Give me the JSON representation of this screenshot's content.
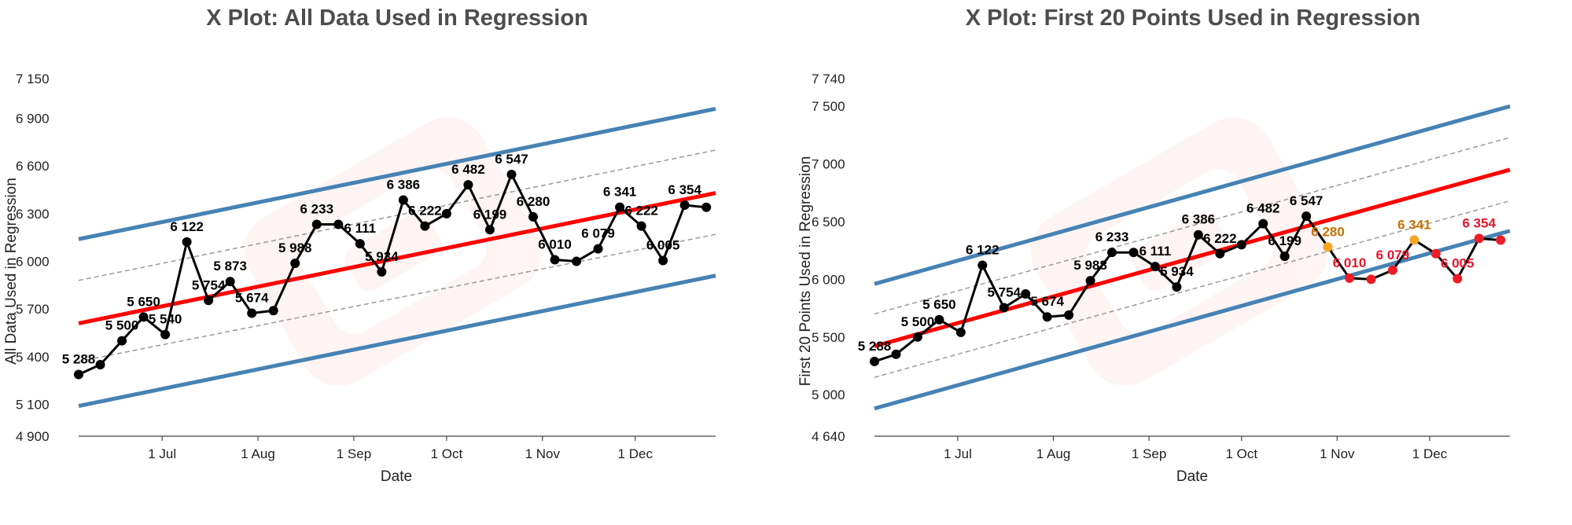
{
  "colors": {
    "line": "#000000",
    "regression": "#ff0000",
    "band_outer": "#4682b4",
    "band_inner": "#999999",
    "point_in": "#000000",
    "point_out": "#ee1c25",
    "point_warn": "#f5a623",
    "label_out": "#e0162b",
    "label_warn": "#c87000"
  },
  "chart_data": [
    {
      "type": "line",
      "title": "X Plot: All Data Used in Regression",
      "xlabel": "Date",
      "ylabel": "All Data Used in Regression",
      "ylim": [
        4900,
        7150
      ],
      "yticks": [
        4900,
        5100,
        5400,
        5700,
        6000,
        6300,
        6600,
        6900,
        7150
      ],
      "ytick_labels": [
        "4 900",
        "5 100",
        "5 400",
        "5 700",
        "6 000",
        "6 300",
        "6 600",
        "6 900",
        "7 150"
      ],
      "xlim": [
        "2023-06-04",
        "2023-12-27"
      ],
      "xticks": [
        "2023-07-01",
        "2023-08-01",
        "2023-09-01",
        "2023-10-01",
        "2023-11-01",
        "2023-12-01"
      ],
      "xtick_labels": [
        "1 Jul",
        "1 Aug",
        "1 Sep",
        "1 Oct",
        "1 Nov",
        "1 Dec"
      ],
      "series": [
        {
          "x": [
            "2023-06-04",
            "2023-06-11",
            "2023-06-18",
            "2023-06-25",
            "2023-07-02",
            "2023-07-09",
            "2023-07-16",
            "2023-07-23",
            "2023-07-30",
            "2023-08-06",
            "2023-08-13",
            "2023-08-20",
            "2023-08-27",
            "2023-09-03",
            "2023-09-10",
            "2023-09-17",
            "2023-09-24",
            "2023-10-01",
            "2023-10-08",
            "2023-10-15",
            "2023-10-22",
            "2023-10-29",
            "2023-11-05",
            "2023-11-12",
            "2023-11-19",
            "2023-11-26",
            "2023-12-03",
            "2023-12-10",
            "2023-12-17",
            "2023-12-24"
          ],
          "y": [
            5288,
            5350,
            5500,
            5650,
            5540,
            6122,
            5754,
            5873,
            5674,
            5690,
            5988,
            6233,
            6233,
            6111,
            5934,
            6386,
            6222,
            6300,
            6482,
            6199,
            6547,
            6280,
            6010,
            6000,
            6079,
            6341,
            6222,
            6005,
            6354,
            6340
          ],
          "status": [
            "in",
            "in",
            "in",
            "in",
            "in",
            "in",
            "in",
            "in",
            "in",
            "in",
            "in",
            "in",
            "in",
            "in",
            "in",
            "in",
            "in",
            "in",
            "in",
            "in",
            "in",
            "in",
            "in",
            "in",
            "in",
            "in",
            "in",
            "in",
            "in",
            "in"
          ],
          "labels": [
            "5 288",
            "",
            "5 500",
            "5 650",
            "5 540",
            "6 122",
            "5 754",
            "5 873",
            "5 674",
            "",
            "5 988",
            "6 233",
            "",
            "6 111",
            "5 934",
            "6 386",
            "6 222",
            "",
            "6 482",
            "6 199",
            "6 547",
            "6 280",
            "6 010",
            "",
            "6 079",
            "6 341",
            "6 222",
            "6 005",
            "6 354",
            ""
          ]
        }
      ],
      "regression": {
        "start": 5610,
        "end": 6430
      },
      "bands": {
        "outer": {
          "lower": [
            5090,
            5910
          ],
          "upper": [
            6140,
            6960
          ]
        },
        "inner": {
          "lower": [
            5370,
            6170
          ],
          "upper": [
            5880,
            6700
          ]
        }
      }
    },
    {
      "type": "line",
      "title": "X Plot: First 20 Points Used in Regression",
      "xlabel": "Date",
      "ylabel": "First 20 Points Used in Regression",
      "ylim": [
        4640,
        7740
      ],
      "yticks": [
        4640,
        5000,
        5500,
        6000,
        6500,
        7000,
        7500,
        7740
      ],
      "ytick_labels": [
        "4 640",
        "5 000",
        "5 500",
        "6 000",
        "6 500",
        "7 000",
        "7 500",
        "7 740"
      ],
      "xlim": [
        "2023-06-04",
        "2023-12-27"
      ],
      "xticks": [
        "2023-07-01",
        "2023-08-01",
        "2023-09-01",
        "2023-10-01",
        "2023-11-01",
        "2023-12-01"
      ],
      "xtick_labels": [
        "1 Jul",
        "1 Aug",
        "1 Sep",
        "1 Oct",
        "1 Nov",
        "1 Dec"
      ],
      "series": [
        {
          "x": [
            "2023-06-04",
            "2023-06-11",
            "2023-06-18",
            "2023-06-25",
            "2023-07-02",
            "2023-07-09",
            "2023-07-16",
            "2023-07-23",
            "2023-07-30",
            "2023-08-06",
            "2023-08-13",
            "2023-08-20",
            "2023-08-27",
            "2023-09-03",
            "2023-09-10",
            "2023-09-17",
            "2023-09-24",
            "2023-10-01",
            "2023-10-08",
            "2023-10-15",
            "2023-10-22",
            "2023-10-29",
            "2023-11-05",
            "2023-11-12",
            "2023-11-19",
            "2023-11-26",
            "2023-12-03",
            "2023-12-10",
            "2023-12-17",
            "2023-12-24"
          ],
          "y": [
            5288,
            5350,
            5500,
            5650,
            5540,
            6122,
            5754,
            5873,
            5674,
            5690,
            5988,
            6233,
            6233,
            6111,
            5934,
            6386,
            6222,
            6300,
            6482,
            6199,
            6547,
            6280,
            6010,
            6000,
            6079,
            6341,
            6222,
            6005,
            6354,
            6340
          ],
          "status": [
            "in",
            "in",
            "in",
            "in",
            "in",
            "in",
            "in",
            "in",
            "in",
            "in",
            "in",
            "in",
            "in",
            "in",
            "in",
            "in",
            "in",
            "in",
            "in",
            "in",
            "in",
            "warn",
            "out",
            "out",
            "out",
            "warn",
            "out",
            "out",
            "out",
            "out"
          ],
          "labels": [
            "5 288",
            "",
            "5 500",
            "5 650",
            "",
            "6 122",
            "5 754",
            "",
            "5 674",
            "",
            "5 988",
            "6 233",
            "",
            "6 111",
            "5 934",
            "6 386",
            "6 222",
            "",
            "6 482",
            "6 199",
            "6 547",
            "6 280",
            "6 010",
            "",
            "6 079",
            "6 341",
            "",
            "6 005",
            "6 354",
            ""
          ]
        }
      ],
      "regression": {
        "start": 5420,
        "end": 6950
      },
      "bands": {
        "outer": {
          "lower": [
            4880,
            6420
          ],
          "upper": [
            5960,
            7500
          ]
        },
        "inner": {
          "lower": [
            5150,
            6680
          ],
          "upper": [
            5700,
            7230
          ]
        }
      }
    }
  ]
}
